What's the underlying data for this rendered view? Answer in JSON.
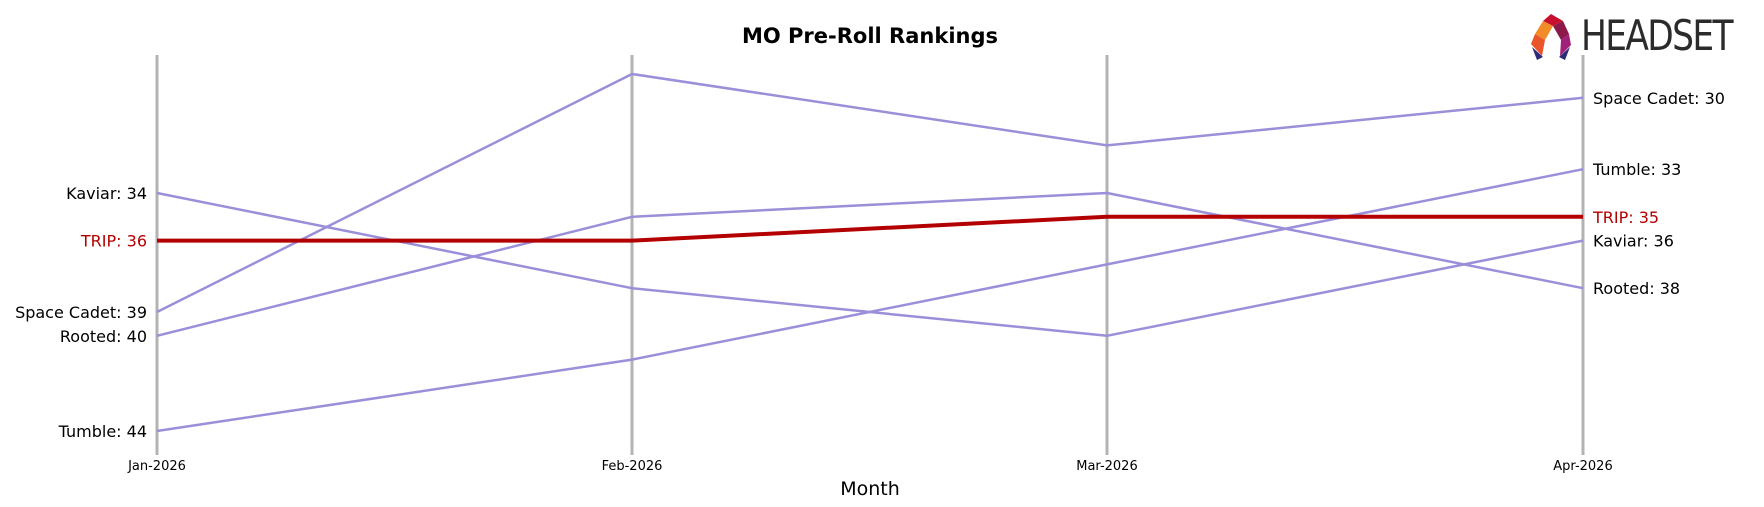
{
  "chart_data": {
    "type": "line",
    "title": "MO Pre-Roll Rankings",
    "xlabel": "Month",
    "ylabel": "",
    "y_inverted": true,
    "ylim": [
      45.5,
      29.5
    ],
    "x": [
      "Jan-2026",
      "Feb-2026",
      "Mar-2026",
      "Apr-2026"
    ],
    "series": [
      {
        "name": "Space Cadet",
        "values": [
          39,
          29,
          32,
          30
        ],
        "color": "#9b8fd9",
        "highlight": false
      },
      {
        "name": "Kaviar",
        "values": [
          34,
          38,
          40,
          36
        ],
        "color": "#9b8fd9",
        "highlight": false
      },
      {
        "name": "Rooted",
        "values": [
          40,
          35,
          34,
          38
        ],
        "color": "#9b8fd9",
        "highlight": false
      },
      {
        "name": "Tumble",
        "values": [
          44,
          41,
          37,
          33
        ],
        "color": "#9b8fd9",
        "highlight": false
      },
      {
        "name": "TRIP",
        "values": [
          36,
          36,
          35,
          35
        ],
        "color": "#b30000",
        "highlight": true
      }
    ],
    "grid": false
  },
  "brand": {
    "logo_text": "HEADSET"
  }
}
